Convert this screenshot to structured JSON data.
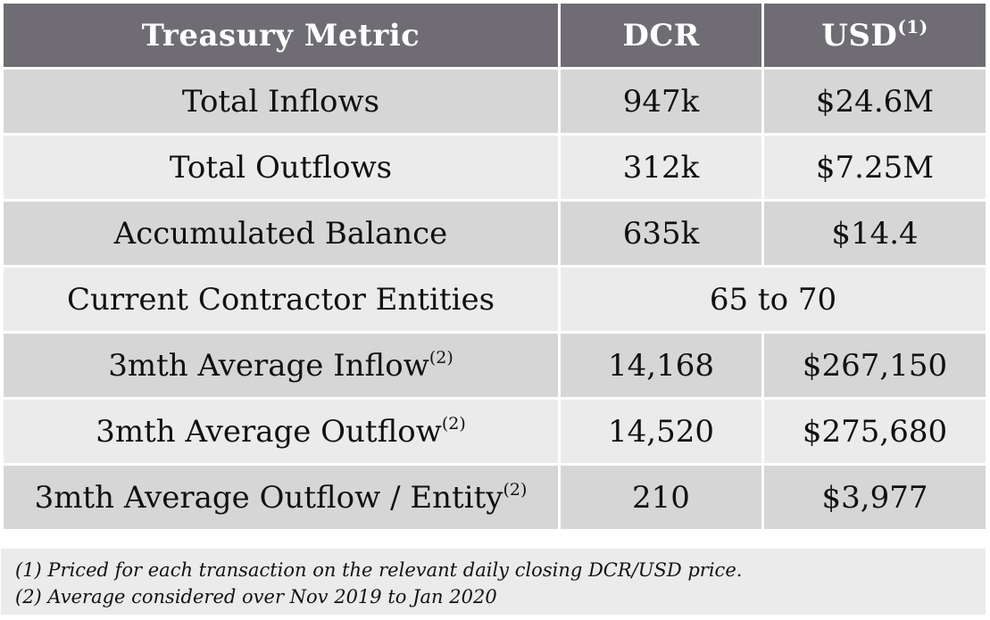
{
  "table": {
    "headers": {
      "metric": "Treasury Metric",
      "dcr": "DCR",
      "usd": "USD",
      "usd_note": "(1)"
    },
    "rows": [
      {
        "metric": "Total Inflows",
        "note": "",
        "dcr": "947k",
        "usd": "$24.6M"
      },
      {
        "metric": "Total Outflows",
        "note": "",
        "dcr": "312k",
        "usd": "$7.25M"
      },
      {
        "metric": "Accumulated Balance",
        "note": "",
        "dcr": "635k",
        "usd": "$14.4"
      },
      {
        "metric": "Current Contractor Entities",
        "note": "",
        "merged": "65 to 70"
      },
      {
        "metric": "3mth Average Inflow",
        "note": "(2)",
        "dcr": "14,168",
        "usd": "$267,150"
      },
      {
        "metric": "3mth Average Outflow",
        "note": "(2)",
        "dcr": "14,520",
        "usd": "$275,680"
      },
      {
        "metric": "3mth Average Outflow / Entity",
        "note": "(2)",
        "dcr": "210",
        "usd": "$3,977"
      }
    ]
  },
  "footnotes": [
    "(1) Priced for each transaction on the relevant daily closing DCR/USD price.",
    "(2) Average considered over Nov 2019 to Jan 2020"
  ],
  "colors": {
    "header_bg": "#6f6d73",
    "row_dark": "#d6d6d6",
    "row_light": "#ebebeb"
  }
}
